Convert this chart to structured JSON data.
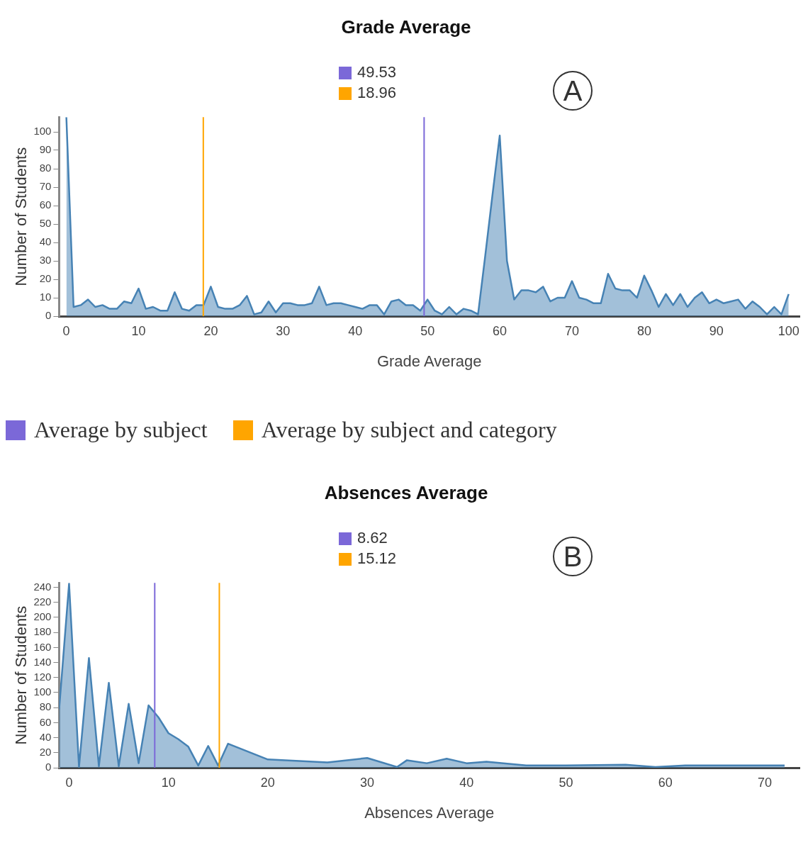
{
  "chart_data": [
    {
      "type": "area",
      "title": "Grade Average",
      "xlabel": "Grade Average",
      "ylabel": "Number of Students",
      "x": [
        0,
        1,
        2,
        3,
        4,
        5,
        6,
        7,
        8,
        9,
        10,
        11,
        12,
        13,
        14,
        15,
        16,
        17,
        18,
        19,
        20,
        21,
        22,
        23,
        24,
        25,
        26,
        27,
        28,
        29,
        30,
        31,
        32,
        33,
        34,
        35,
        36,
        37,
        38,
        39,
        40,
        41,
        42,
        43,
        44,
        45,
        46,
        47,
        48,
        49,
        50,
        51,
        52,
        53,
        54,
        55,
        56,
        57,
        58,
        59,
        60,
        61,
        62,
        63,
        64,
        65,
        66,
        67,
        68,
        69,
        70,
        71,
        72,
        73,
        74,
        75,
        76,
        77,
        78,
        79,
        80,
        81,
        82,
        83,
        84,
        85,
        86,
        87,
        88,
        89,
        90,
        91,
        92,
        93,
        94,
        95,
        96,
        97,
        98,
        99,
        100
      ],
      "series": [
        {
          "color": "#4682b4",
          "values": [
            108,
            5,
            6,
            9,
            5,
            6,
            4,
            4,
            8,
            7,
            15,
            4,
            5,
            3,
            3,
            13,
            4,
            3,
            6,
            6,
            16,
            5,
            4,
            4,
            6,
            11,
            1,
            2,
            8,
            2,
            7,
            7,
            6,
            6,
            7,
            16,
            6,
            7,
            7,
            6,
            5,
            4,
            6,
            6,
            1,
            8,
            9,
            6,
            6,
            3,
            9,
            3,
            1,
            5,
            1,
            4,
            3,
            1,
            33,
            66,
            98,
            30,
            9,
            14,
            14,
            13,
            16,
            8,
            10,
            10,
            19,
            10,
            9,
            7,
            7,
            23,
            15,
            14,
            14,
            10,
            22,
            14,
            5,
            12,
            6,
            12,
            5,
            10,
            13,
            7,
            9,
            7,
            8,
            9,
            4,
            8,
            5,
            1,
            5,
            1,
            12
          ]
        }
      ],
      "xlim": [
        -1,
        101.5
      ],
      "xticks": [
        0,
        10,
        20,
        30,
        40,
        50,
        60,
        70,
        80,
        90,
        100
      ],
      "ylim": [
        0,
        108
      ],
      "yticks": [
        0,
        10,
        20,
        30,
        40,
        50,
        60,
        70,
        80,
        90,
        100
      ],
      "ref_lines": [
        {
          "axis": "x",
          "value": 49.53,
          "label": "49.53",
          "color": "#7b68d8"
        },
        {
          "axis": "x",
          "value": 18.96,
          "label": "18.96",
          "color": "#ffa500"
        }
      ],
      "annotations": [
        "A",
        "Average by subject",
        "Average by subject and category"
      ],
      "grid": false,
      "legend": "top"
    },
    {
      "type": "area",
      "title": "Absences Average",
      "xlabel": "Absences Average",
      "ylabel": "Number of Students",
      "x": [
        -1,
        0,
        1,
        2,
        3,
        4,
        5,
        6,
        7,
        8,
        9,
        10,
        11,
        12,
        13,
        14,
        15,
        16,
        20,
        26,
        30,
        33,
        34,
        36,
        38,
        40,
        42,
        46,
        50,
        56,
        59,
        62,
        72
      ],
      "series": [
        {
          "color": "#4682b4",
          "values": [
            78,
            245,
            1,
            146,
            2,
            113,
            2,
            85,
            6,
            83,
            67,
            46,
            38,
            28,
            3,
            29,
            3,
            32,
            11,
            7,
            13,
            1,
            10,
            6,
            12,
            6,
            8,
            3,
            3,
            4,
            1,
            3,
            3
          ]
        }
      ],
      "xlim": [
        -1,
        73.5
      ],
      "xticks": [
        0,
        10,
        20,
        30,
        40,
        50,
        60,
        70
      ],
      "ylim": [
        0,
        246
      ],
      "yticks": [
        0,
        20,
        40,
        60,
        80,
        100,
        120,
        140,
        160,
        180,
        200,
        220,
        240
      ],
      "ref_lines": [
        {
          "axis": "x",
          "value": 8.62,
          "label": "8.62",
          "color": "#7b68d8"
        },
        {
          "axis": "x",
          "value": 15.12,
          "label": "15.12",
          "color": "#ffa500"
        }
      ],
      "annotations": [
        "B"
      ],
      "grid": false,
      "legend": "top"
    }
  ]
}
